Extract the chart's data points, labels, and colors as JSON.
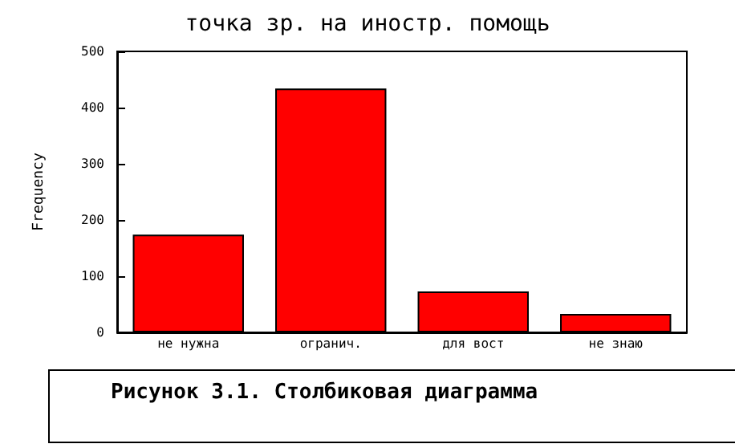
{
  "chart_data": {
    "type": "bar",
    "title": "точка зр. на иностр. помощь",
    "ylabel": "Frequency",
    "categories": [
      "не нужна",
      "огранич.",
      "для вост",
      "не знаю"
    ],
    "values": [
      174,
      434,
      73,
      33
    ],
    "color": "#ff0000",
    "ylim": [
      0,
      500
    ],
    "yticks": [
      0,
      100,
      200,
      300,
      400,
      500
    ],
    "grid": false,
    "annotations": [
      "Рисунок 3.1. Столбиковая диаграмма"
    ]
  }
}
